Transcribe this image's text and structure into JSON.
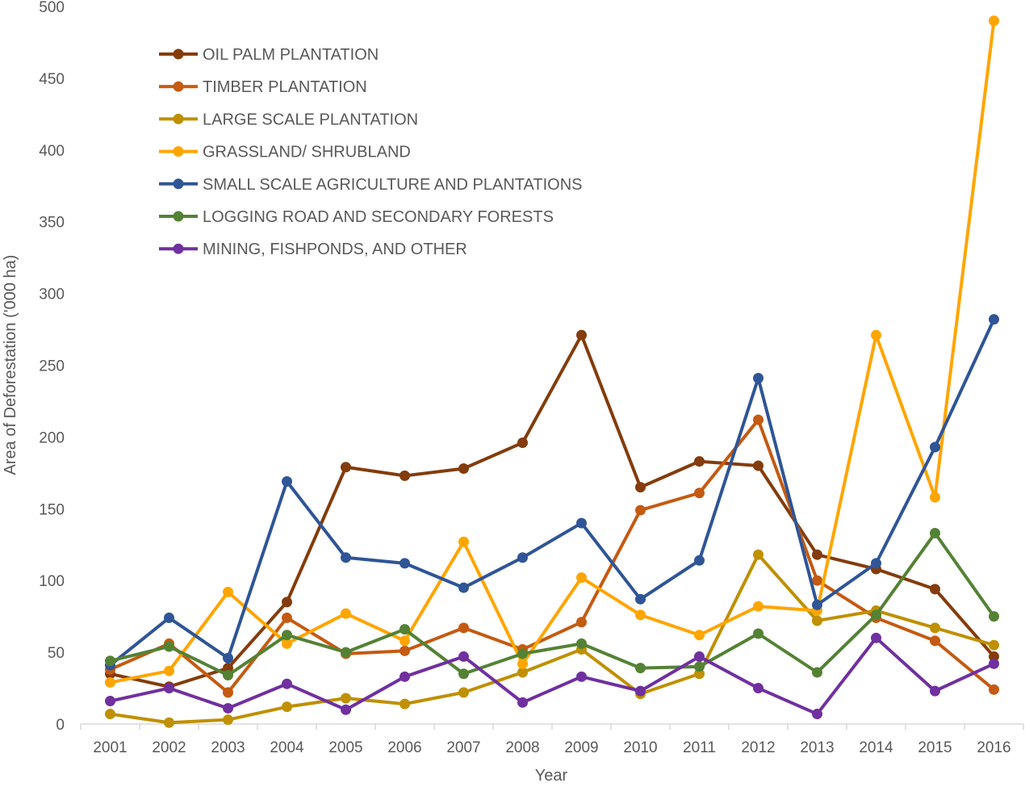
{
  "chart_data": {
    "type": "line",
    "title": "",
    "xlabel": "Year",
    "ylabel": "Area of Deforestation ('000 ha)",
    "ylim": [
      0,
      500
    ],
    "yticks": [
      0,
      50,
      100,
      150,
      200,
      250,
      300,
      350,
      400,
      450,
      500
    ],
    "grid": false,
    "legend": "top-left",
    "categories": [
      "2001",
      "2002",
      "2003",
      "2004",
      "2005",
      "2006",
      "2007",
      "2008",
      "2009",
      "2010",
      "2011",
      "2012",
      "2013",
      "2014",
      "2015",
      "2016"
    ],
    "series": [
      {
        "name": "OIL PALM PLANTATION",
        "color": "#843C0C",
        "values": [
          35,
          26,
          39,
          85,
          179,
          173,
          178,
          196,
          271,
          165,
          183,
          180,
          118,
          108,
          94,
          47
        ]
      },
      {
        "name": "TIMBER PLANTATION",
        "color": "#C55A11",
        "values": [
          38,
          56,
          22,
          74,
          49,
          51,
          67,
          52,
          71,
          149,
          161,
          212,
          100,
          74,
          58,
          24
        ]
      },
      {
        "name": "LARGE SCALE PLANTATION",
        "color": "#BF9000",
        "values": [
          7,
          1,
          3,
          12,
          18,
          14,
          22,
          36,
          52,
          21,
          35,
          118,
          72,
          79,
          67,
          55
        ]
      },
      {
        "name": "GRASSLAND/ SHRUBLAND",
        "color": "#FFA500",
        "values": [
          29,
          37,
          92,
          56,
          77,
          58,
          127,
          42,
          102,
          76,
          62,
          82,
          79,
          271,
          158,
          490
        ]
      },
      {
        "name": "SMALL SCALE AGRICULTURE AND PLANTATIONS",
        "color": "#2F5597",
        "values": [
          41,
          74,
          46,
          169,
          116,
          112,
          95,
          116,
          140,
          87,
          114,
          241,
          83,
          112,
          193,
          282
        ]
      },
      {
        "name": "LOGGING ROAD AND SECONDARY FORESTS",
        "color": "#548235",
        "values": [
          44,
          54,
          34,
          62,
          50,
          66,
          35,
          49,
          56,
          39,
          40,
          63,
          36,
          76,
          133,
          75
        ]
      },
      {
        "name": "MINING, FISHPONDS, AND OTHER",
        "color": "#7030A0",
        "values": [
          16,
          25,
          11,
          28,
          10,
          33,
          47,
          15,
          33,
          23,
          47,
          25,
          7,
          60,
          23,
          42
        ]
      }
    ]
  }
}
